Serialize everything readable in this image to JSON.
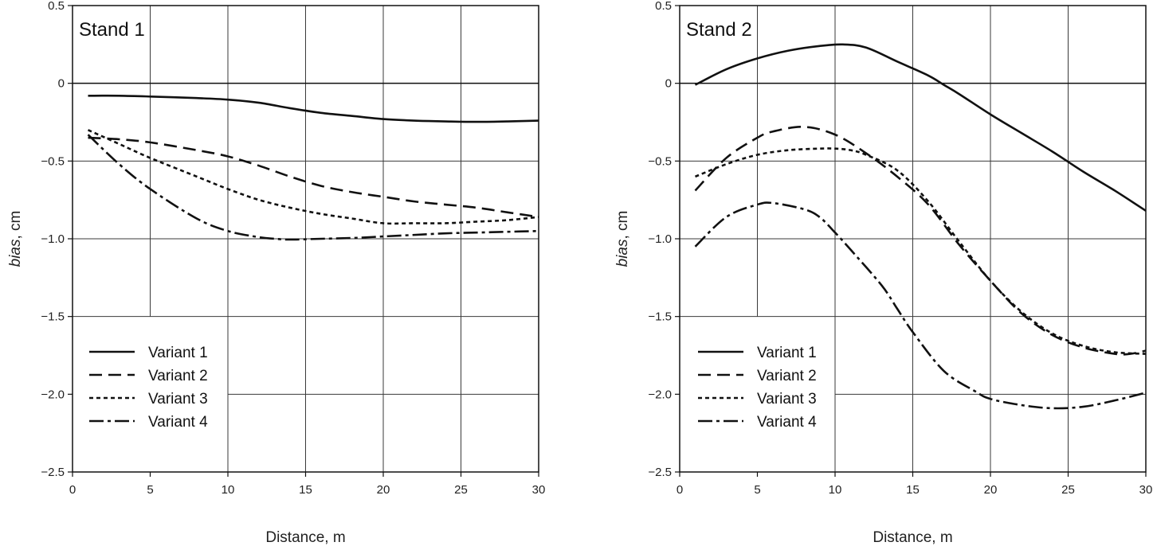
{
  "chart_data": [
    {
      "type": "line",
      "panel_label": "Stand 1",
      "xlabel": "Distance, m",
      "ylabel_italic": "bias",
      "ylabel_rest": ", cm",
      "xlim": [
        0,
        30
      ],
      "ylim": [
        -2.5,
        0.5
      ],
      "xticks": [
        0,
        5,
        10,
        15,
        20,
        25,
        30
      ],
      "xtick_labels": [
        "0",
        "5",
        "10",
        "15",
        "20",
        "25",
        "30"
      ],
      "yticks": [
        0.5,
        0,
        -0.5,
        -1.0,
        -1.5,
        -2.0,
        -2.5
      ],
      "ytick_labels": [
        "0.5",
        "0",
        "−0.5",
        "−1.0",
        "−1.5",
        "−2.0",
        "−2.5"
      ],
      "grid": true,
      "legend_position": "bottom-left",
      "series": [
        {
          "name": "Variant 1",
          "style": "solid",
          "x": [
            1,
            3,
            5,
            8,
            10,
            12,
            14,
            16,
            18,
            20,
            22,
            24,
            26,
            28,
            30
          ],
          "y": [
            -0.08,
            -0.08,
            -0.085,
            -0.095,
            -0.105,
            -0.125,
            -0.16,
            -0.19,
            -0.21,
            -0.23,
            -0.24,
            -0.245,
            -0.248,
            -0.245,
            -0.24
          ]
        },
        {
          "name": "Variant 2",
          "style": "dashed",
          "x": [
            1,
            3,
            5,
            8,
            10,
            12,
            14,
            16,
            18,
            20,
            22,
            24,
            26,
            28,
            30
          ],
          "y": [
            -0.35,
            -0.36,
            -0.38,
            -0.43,
            -0.47,
            -0.53,
            -0.6,
            -0.66,
            -0.7,
            -0.73,
            -0.76,
            -0.78,
            -0.8,
            -0.83,
            -0.86
          ]
        },
        {
          "name": "Variant 3",
          "style": "dotted",
          "x": [
            1,
            3,
            5,
            8,
            10,
            12,
            14,
            16,
            18,
            20,
            22,
            24,
            26,
            28,
            30
          ],
          "y": [
            -0.3,
            -0.39,
            -0.48,
            -0.6,
            -0.68,
            -0.75,
            -0.8,
            -0.84,
            -0.87,
            -0.9,
            -0.9,
            -0.9,
            -0.89,
            -0.88,
            -0.86
          ]
        },
        {
          "name": "Variant 4",
          "style": "dashdot",
          "x": [
            1,
            3,
            5,
            8,
            10,
            12,
            13,
            14,
            16,
            18,
            20,
            22,
            24,
            26,
            28,
            30
          ],
          "y": [
            -0.33,
            -0.52,
            -0.68,
            -0.87,
            -0.95,
            -0.99,
            -1.0,
            -1.005,
            -1.0,
            -0.995,
            -0.985,
            -0.975,
            -0.965,
            -0.96,
            -0.955,
            -0.95
          ]
        }
      ]
    },
    {
      "type": "line",
      "panel_label": "Stand 2",
      "xlabel": "Distance, m",
      "ylabel_italic": "bias",
      "ylabel_rest": ", cm",
      "xlim": [
        0,
        30
      ],
      "ylim": [
        -2.5,
        0.5
      ],
      "xticks": [
        0,
        5,
        10,
        15,
        20,
        25,
        30
      ],
      "xtick_labels": [
        "0",
        "5",
        "10",
        "15",
        "20",
        "25",
        "30"
      ],
      "yticks": [
        0.5,
        0,
        -0.5,
        -1.0,
        -1.5,
        -2.0,
        -2.5
      ],
      "ytick_labels": [
        "0.5",
        "0",
        "−0.5",
        "−1.0",
        "−1.5",
        "−2.0",
        "−2.5"
      ],
      "grid": true,
      "legend_position": "bottom-left",
      "series": [
        {
          "name": "Variant 1",
          "style": "solid",
          "x": [
            1,
            3,
            5,
            7,
            9,
            10.5,
            12,
            14,
            16,
            17,
            18,
            20,
            22,
            24,
            26,
            28,
            30
          ],
          "y": [
            -0.01,
            0.09,
            0.16,
            0.21,
            0.24,
            0.25,
            0.23,
            0.14,
            0.05,
            -0.01,
            -0.07,
            -0.2,
            -0.32,
            -0.44,
            -0.57,
            -0.69,
            -0.82
          ]
        },
        {
          "name": "Variant 2",
          "style": "dashed",
          "x": [
            1,
            3,
            5,
            6,
            8,
            10,
            12,
            14,
            16,
            18,
            20,
            22,
            24,
            26,
            28,
            29,
            30
          ],
          "y": [
            -0.69,
            -0.48,
            -0.35,
            -0.31,
            -0.28,
            -0.33,
            -0.45,
            -0.6,
            -0.78,
            -1.04,
            -1.27,
            -1.48,
            -1.62,
            -1.7,
            -1.74,
            -1.74,
            -1.72
          ]
        },
        {
          "name": "Variant 3",
          "style": "dotted",
          "x": [
            1,
            3,
            5,
            7,
            9,
            10,
            11,
            12,
            14,
            16,
            18,
            20,
            22,
            24,
            26,
            28,
            30
          ],
          "y": [
            -0.6,
            -0.52,
            -0.46,
            -0.43,
            -0.42,
            -0.42,
            -0.43,
            -0.46,
            -0.56,
            -0.76,
            -1.02,
            -1.27,
            -1.47,
            -1.61,
            -1.69,
            -1.73,
            -1.74
          ]
        },
        {
          "name": "Variant 4",
          "style": "dashdot",
          "x": [
            1,
            3,
            5,
            6,
            8,
            9,
            10,
            11,
            13,
            14,
            15,
            17,
            19,
            20,
            22,
            24,
            26,
            28,
            30
          ],
          "y": [
            -1.05,
            -0.86,
            -0.78,
            -0.77,
            -0.81,
            -0.86,
            -0.96,
            -1.07,
            -1.3,
            -1.45,
            -1.6,
            -1.85,
            -1.98,
            -2.03,
            -2.07,
            -2.09,
            -2.08,
            -2.04,
            -1.99
          ]
        }
      ]
    }
  ]
}
